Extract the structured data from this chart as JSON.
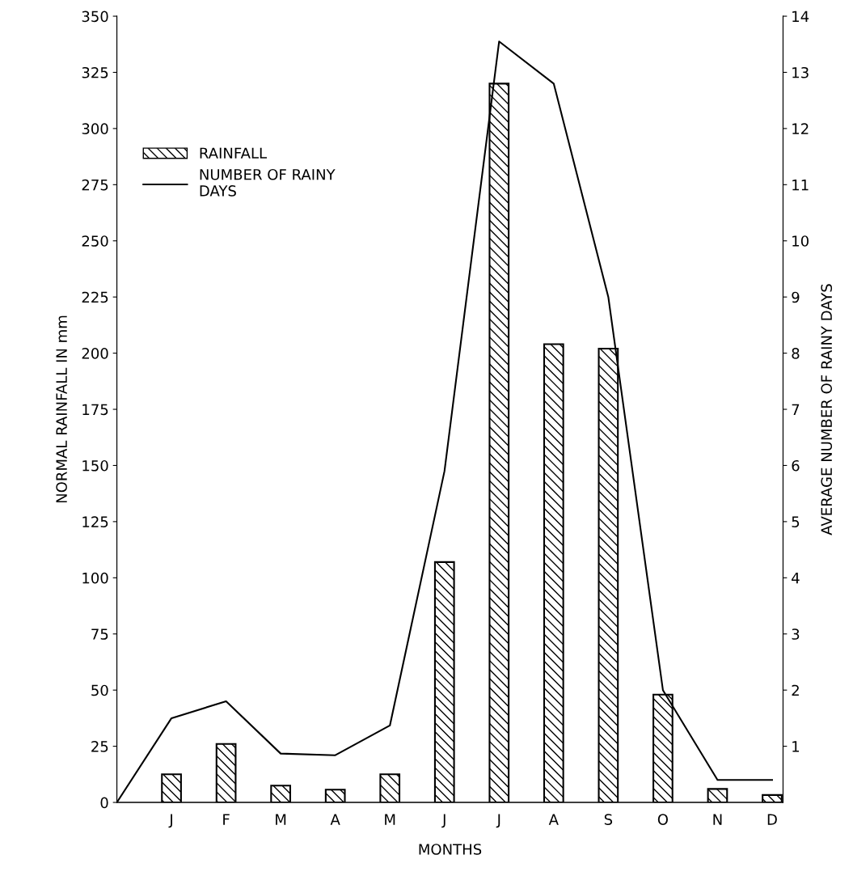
{
  "chart_data": {
    "type": "bar",
    "xlabel": "MONTHS",
    "ylabel": "NORMAL RAINFALL IN mm",
    "y2label": "AVERAGE NUMBER OF RAINY DAYS",
    "categories": [
      null,
      "J",
      "F",
      "M",
      "A",
      "M",
      "J",
      "J",
      "A",
      "S",
      "O",
      "N",
      "D"
    ],
    "series": [
      {
        "name": "RAINFALL",
        "color": "#000000",
        "values": [
          null,
          12.5,
          26,
          7.5,
          5.7,
          12.5,
          107,
          320,
          204,
          202,
          48,
          6,
          3.3
        ]
      },
      {
        "name": "NUMBER OF RAINY\nDAYS",
        "type": "line",
        "axis": "y2",
        "color": "#000000",
        "values": [
          0,
          1.5,
          1.8,
          0.87,
          0.84,
          1.37,
          5.9,
          13.55,
          12.8,
          9.0,
          2.0,
          0.4,
          0.4
        ]
      }
    ],
    "ylim": [
      0,
      350
    ],
    "yticks": [
      0,
      25,
      50,
      75,
      100,
      125,
      150,
      175,
      200,
      225,
      250,
      275,
      300,
      325,
      350
    ],
    "y2lim": [
      0,
      14
    ],
    "y2ticks": [
      1,
      2,
      3,
      4,
      5,
      6,
      7,
      8,
      9,
      10,
      11,
      12,
      13,
      14
    ],
    "legend": "top left",
    "grid": false
  }
}
